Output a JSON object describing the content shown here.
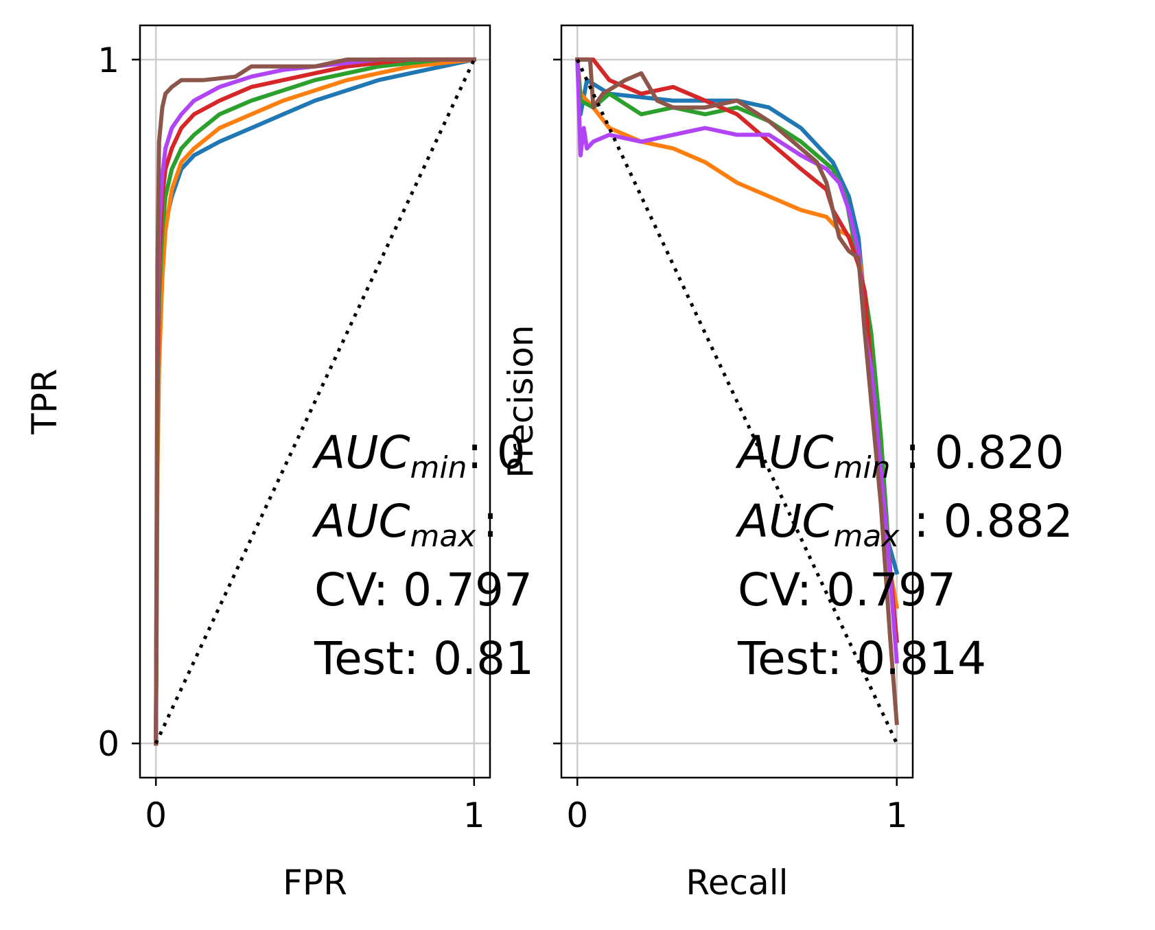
{
  "chart_data": [
    {
      "type": "line",
      "xlabel": "FPR",
      "ylabel": "TPR",
      "xlim": [
        -0.05,
        1.05
      ],
      "ylim": [
        -0.05,
        1.05
      ],
      "xticks": [
        "0",
        "1"
      ],
      "yticks": [
        "0",
        "1"
      ],
      "grid": true,
      "reference_line": {
        "style": "dotted",
        "color": "#000000",
        "x": [
          0,
          1
        ],
        "y": [
          0,
          1
        ]
      },
      "series": [
        {
          "color": "#1f77b4",
          "x": [
            0,
            0.005,
            0.01,
            0.02,
            0.03,
            0.05,
            0.08,
            0.12,
            0.2,
            0.3,
            0.4,
            0.5,
            0.6,
            0.7,
            0.8,
            0.9,
            1.0
          ],
          "y": [
            0,
            0.45,
            0.6,
            0.7,
            0.76,
            0.8,
            0.84,
            0.86,
            0.88,
            0.9,
            0.92,
            0.94,
            0.955,
            0.97,
            0.98,
            0.99,
            1.0
          ]
        },
        {
          "color": "#ff7f0e",
          "x": [
            0,
            0.005,
            0.01,
            0.02,
            0.03,
            0.05,
            0.08,
            0.12,
            0.2,
            0.3,
            0.4,
            0.5,
            0.6,
            0.7,
            0.8,
            0.9,
            1.0
          ],
          "y": [
            0,
            0.4,
            0.55,
            0.68,
            0.75,
            0.81,
            0.85,
            0.87,
            0.9,
            0.92,
            0.94,
            0.955,
            0.97,
            0.98,
            0.99,
            0.995,
            1.0
          ]
        },
        {
          "color": "#2ca02c",
          "x": [
            0,
            0.005,
            0.01,
            0.02,
            0.03,
            0.05,
            0.08,
            0.12,
            0.2,
            0.3,
            0.4,
            0.5,
            0.6,
            0.7,
            0.8,
            0.9,
            1.0
          ],
          "y": [
            0,
            0.5,
            0.65,
            0.75,
            0.8,
            0.84,
            0.87,
            0.89,
            0.92,
            0.94,
            0.955,
            0.97,
            0.98,
            0.99,
            0.995,
            1.0,
            1.0
          ]
        },
        {
          "color": "#d62728",
          "x": [
            0,
            0.005,
            0.01,
            0.02,
            0.03,
            0.05,
            0.08,
            0.12,
            0.2,
            0.3,
            0.4,
            0.5,
            0.6,
            0.7,
            0.8,
            0.9,
            1.0
          ],
          "y": [
            0,
            0.55,
            0.7,
            0.8,
            0.84,
            0.87,
            0.9,
            0.92,
            0.94,
            0.96,
            0.97,
            0.98,
            0.99,
            0.995,
            1.0,
            1.0,
            1.0
          ]
        },
        {
          "color": "#b144f5",
          "x": [
            0,
            0.005,
            0.01,
            0.02,
            0.03,
            0.05,
            0.08,
            0.12,
            0.2,
            0.3,
            0.4,
            0.5,
            0.6,
            0.7,
            0.8,
            0.9,
            1.0
          ],
          "y": [
            0,
            0.6,
            0.75,
            0.83,
            0.87,
            0.9,
            0.92,
            0.94,
            0.96,
            0.975,
            0.985,
            0.99,
            0.995,
            1.0,
            1.0,
            1.0,
            1.0
          ]
        },
        {
          "color": "#8c564b",
          "x": [
            0,
            0.005,
            0.01,
            0.02,
            0.03,
            0.05,
            0.08,
            0.15,
            0.25,
            0.3,
            0.5,
            0.6,
            0.7,
            1.0
          ],
          "y": [
            0,
            0.7,
            0.88,
            0.93,
            0.95,
            0.96,
            0.97,
            0.97,
            0.975,
            0.99,
            0.99,
            1.0,
            1.0,
            1.0
          ]
        }
      ],
      "annotation": [
        "AUC",
        "min",
        ": 0",
        "AUC",
        "max",
        ":",
        "CV: 0.797",
        "Test: 0.81"
      ]
    },
    {
      "type": "line",
      "xlabel": "Recall",
      "ylabel": "Precision",
      "xlim": [
        -0.05,
        1.05
      ],
      "ylim": [
        -0.05,
        1.05
      ],
      "xticks": [
        "0",
        "1"
      ],
      "yticks": [
        "",
        ""
      ],
      "grid": true,
      "reference_line": {
        "style": "dotted",
        "color": "#000000",
        "x": [
          0,
          1
        ],
        "y": [
          1,
          0
        ]
      },
      "series": [
        {
          "color": "#1f77b4",
          "x": [
            0,
            0.01,
            0.03,
            0.1,
            0.3,
            0.5,
            0.6,
            0.7,
            0.8,
            0.85,
            0.88,
            0.9,
            0.92,
            0.95,
            0.97,
            1.0
          ],
          "y": [
            1.0,
            0.92,
            0.97,
            0.95,
            0.94,
            0.94,
            0.93,
            0.9,
            0.85,
            0.8,
            0.74,
            0.64,
            0.5,
            0.38,
            0.3,
            0.25
          ]
        },
        {
          "color": "#ff7f0e",
          "x": [
            0,
            0.01,
            0.05,
            0.1,
            0.2,
            0.3,
            0.4,
            0.5,
            0.6,
            0.7,
            0.78,
            0.82,
            0.86,
            0.88,
            0.9,
            0.92,
            0.95,
            0.98,
            1.0
          ],
          "y": [
            1.0,
            0.95,
            0.93,
            0.9,
            0.88,
            0.87,
            0.85,
            0.82,
            0.8,
            0.78,
            0.77,
            0.75,
            0.74,
            0.72,
            0.65,
            0.55,
            0.4,
            0.25,
            0.2
          ]
        },
        {
          "color": "#2ca02c",
          "x": [
            0,
            0.01,
            0.05,
            0.1,
            0.2,
            0.3,
            0.4,
            0.5,
            0.6,
            0.7,
            0.8,
            0.84,
            0.88,
            0.9,
            0.92,
            0.95,
            0.98,
            1.0
          ],
          "y": [
            1.0,
            0.94,
            0.93,
            0.95,
            0.92,
            0.93,
            0.92,
            0.93,
            0.91,
            0.88,
            0.84,
            0.8,
            0.7,
            0.66,
            0.6,
            0.45,
            0.25,
            0.15
          ]
        },
        {
          "color": "#d62728",
          "x": [
            0,
            0.01,
            0.05,
            0.1,
            0.2,
            0.3,
            0.4,
            0.5,
            0.6,
            0.7,
            0.78,
            0.8,
            0.85,
            0.88,
            0.9,
            0.92,
            0.95,
            0.98,
            1.0
          ],
          "y": [
            1.0,
            1.0,
            1.0,
            0.97,
            0.95,
            0.96,
            0.94,
            0.92,
            0.88,
            0.84,
            0.81,
            0.78,
            0.74,
            0.7,
            0.66,
            0.55,
            0.4,
            0.25,
            0.15
          ]
        },
        {
          "color": "#b144f5",
          "x": [
            0,
            0.01,
            0.02,
            0.03,
            0.05,
            0.1,
            0.2,
            0.3,
            0.4,
            0.5,
            0.6,
            0.7,
            0.78,
            0.82,
            0.85,
            0.88,
            0.9,
            0.92,
            0.94,
            0.97,
            0.99,
            1.0
          ],
          "y": [
            1.0,
            0.86,
            0.9,
            0.87,
            0.88,
            0.89,
            0.88,
            0.89,
            0.9,
            0.89,
            0.89,
            0.86,
            0.84,
            0.82,
            0.78,
            0.72,
            0.6,
            0.55,
            0.45,
            0.3,
            0.18,
            0.12
          ]
        },
        {
          "color": "#8c564b",
          "x": [
            0,
            0.02,
            0.04,
            0.05,
            0.08,
            0.15,
            0.2,
            0.25,
            0.3,
            0.4,
            0.5,
            0.6,
            0.7,
            0.75,
            0.78,
            0.8,
            0.82,
            0.85,
            0.88,
            0.9,
            0.92,
            0.95,
            0.98,
            1.0
          ],
          "y": [
            1.0,
            1.0,
            1.0,
            0.93,
            0.95,
            0.97,
            0.98,
            0.94,
            0.93,
            0.93,
            0.94,
            0.91,
            0.87,
            0.85,
            0.82,
            0.78,
            0.74,
            0.72,
            0.71,
            0.6,
            0.5,
            0.35,
            0.15,
            0.03
          ]
        }
      ],
      "annotation": [
        "AUC",
        "min",
        " : 0.820",
        "AUC",
        "max",
        " : 0.882",
        "CV: 0.797",
        "Test: 0.814"
      ]
    }
  ]
}
